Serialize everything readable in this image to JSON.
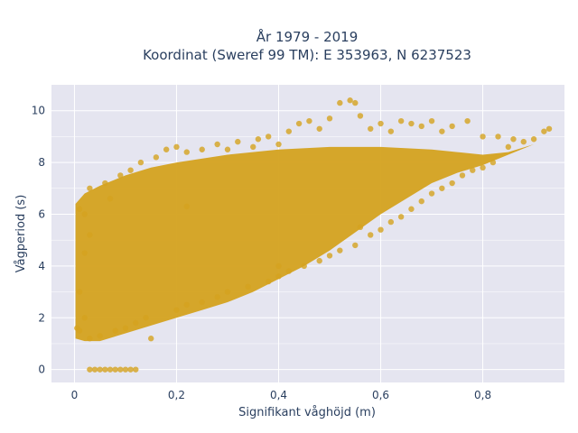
{
  "chart_data": {
    "type": "scatter",
    "title_line1": "År 1979 - 2019",
    "title_line2": "Koordinat (Sweref 99 TM): E 353963, N 6237523",
    "xlabel": "Signifikant våghöjd (m)",
    "ylabel": "Vågperiod (s)",
    "xlim": [
      -0.045,
      0.96
    ],
    "ylim": [
      -0.5,
      11
    ],
    "x_ticks": [
      0,
      0.2,
      0.4,
      0.6,
      0.8
    ],
    "x_tick_labels": [
      "0",
      "0,2",
      "0,4",
      "0,6",
      "0,8"
    ],
    "y_ticks": [
      0,
      2,
      4,
      6,
      8,
      10
    ],
    "y_tick_labels": [
      "0",
      "2",
      "4",
      "6",
      "8",
      "10"
    ],
    "grid": true,
    "colors": {
      "marker": "#d4a21f",
      "plot_bg": "#e5e5f0",
      "grid": "#ffffff",
      "text": "#2a3f5f"
    },
    "series": [
      {
        "values_note_free": true,
        "points": [
          [
            0.005,
            1.6
          ],
          [
            0.01,
            1.5
          ],
          [
            0.01,
            3.0
          ],
          [
            0.01,
            6.2
          ],
          [
            0.02,
            2.0
          ],
          [
            0.02,
            4.5
          ],
          [
            0.02,
            6.0
          ],
          [
            0.03,
            1.2
          ],
          [
            0.03,
            5.2
          ],
          [
            0.03,
            7.0
          ],
          [
            0.03,
            0.0
          ],
          [
            0.04,
            0.0
          ],
          [
            0.05,
            0.0
          ],
          [
            0.06,
            0.0
          ],
          [
            0.07,
            0.0
          ],
          [
            0.08,
            0.0
          ],
          [
            0.09,
            0.0
          ],
          [
            0.1,
            0.0
          ],
          [
            0.11,
            0.0
          ],
          [
            0.12,
            0.0
          ],
          [
            0.05,
            1.3
          ],
          [
            0.06,
            7.2
          ],
          [
            0.07,
            6.6
          ],
          [
            0.08,
            1.5
          ],
          [
            0.09,
            7.5
          ],
          [
            0.1,
            1.6
          ],
          [
            0.11,
            7.7
          ],
          [
            0.12,
            1.8
          ],
          [
            0.13,
            8.0
          ],
          [
            0.14,
            2.0
          ],
          [
            0.15,
            1.2
          ],
          [
            0.16,
            8.2
          ],
          [
            0.18,
            8.5
          ],
          [
            0.2,
            2.3
          ],
          [
            0.2,
            8.6
          ],
          [
            0.22,
            2.5
          ],
          [
            0.22,
            8.4
          ],
          [
            0.25,
            2.6
          ],
          [
            0.25,
            8.5
          ],
          [
            0.28,
            2.8
          ],
          [
            0.28,
            8.7
          ],
          [
            0.3,
            3.0
          ],
          [
            0.3,
            8.5
          ],
          [
            0.32,
            8.8
          ],
          [
            0.34,
            3.2
          ],
          [
            0.35,
            8.6
          ],
          [
            0.36,
            8.9
          ],
          [
            0.38,
            3.4
          ],
          [
            0.38,
            9.0
          ],
          [
            0.4,
            3.6
          ],
          [
            0.4,
            8.7
          ],
          [
            0.42,
            3.8
          ],
          [
            0.42,
            9.2
          ],
          [
            0.44,
            9.5
          ],
          [
            0.45,
            4.0
          ],
          [
            0.46,
            9.6
          ],
          [
            0.48,
            4.2
          ],
          [
            0.48,
            9.3
          ],
          [
            0.5,
            4.4
          ],
          [
            0.5,
            9.7
          ],
          [
            0.52,
            4.6
          ],
          [
            0.52,
            10.3
          ],
          [
            0.54,
            10.4
          ],
          [
            0.55,
            4.8
          ],
          [
            0.55,
            10.3
          ],
          [
            0.56,
            9.8
          ],
          [
            0.58,
            5.2
          ],
          [
            0.58,
            9.3
          ],
          [
            0.6,
            5.4
          ],
          [
            0.6,
            9.5
          ],
          [
            0.62,
            5.7
          ],
          [
            0.62,
            9.2
          ],
          [
            0.64,
            5.9
          ],
          [
            0.64,
            9.6
          ],
          [
            0.66,
            6.2
          ],
          [
            0.66,
            9.5
          ],
          [
            0.68,
            6.5
          ],
          [
            0.68,
            9.4
          ],
          [
            0.7,
            6.8
          ],
          [
            0.7,
            9.6
          ],
          [
            0.72,
            7.0
          ],
          [
            0.72,
            9.2
          ],
          [
            0.74,
            7.2
          ],
          [
            0.74,
            9.4
          ],
          [
            0.76,
            7.5
          ],
          [
            0.77,
            9.6
          ],
          [
            0.78,
            7.7
          ],
          [
            0.8,
            7.8
          ],
          [
            0.8,
            9.0
          ],
          [
            0.82,
            8.0
          ],
          [
            0.83,
            9.0
          ],
          [
            0.85,
            8.6
          ],
          [
            0.86,
            8.9
          ],
          [
            0.88,
            8.8
          ],
          [
            0.9,
            8.9
          ],
          [
            0.92,
            9.2
          ],
          [
            0.93,
            9.3
          ],
          [
            0.22,
            6.3
          ],
          [
            0.4,
            4.0
          ],
          [
            0.56,
            5.5
          ]
        ]
      }
    ]
  }
}
